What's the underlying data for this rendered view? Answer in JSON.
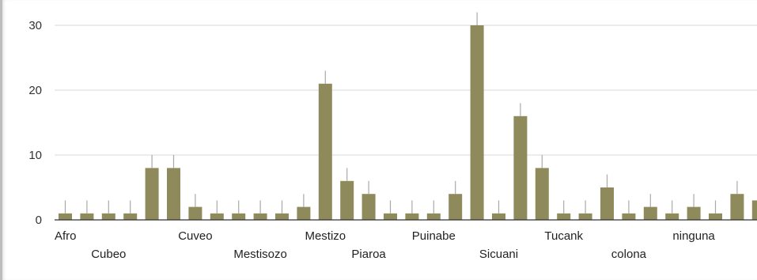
{
  "chart_data": {
    "type": "bar",
    "title": "",
    "xlabel": "",
    "ylabel": "",
    "ylim": [
      0,
      30
    ],
    "yticks": [
      0,
      10,
      20,
      30
    ],
    "grid": true,
    "bar_color": "#8f8a5b",
    "error_color": "#a9a9a9",
    "categories": [
      "Afro",
      "",
      "Cubeo",
      "",
      "",
      "",
      "Cuveo",
      "",
      "",
      "Mestisozo",
      "",
      "",
      "Mestizo",
      "",
      "Piaroa",
      "",
      "",
      "Puinabe",
      "",
      "",
      "Sicuani",
      "",
      "",
      "Tucank",
      "",
      "",
      "colona",
      "",
      "",
      "ninguna",
      "",
      "",
      ""
    ],
    "values": [
      1,
      1,
      1,
      1,
      8,
      8,
      2,
      1,
      1,
      1,
      1,
      2,
      21,
      6,
      4,
      1,
      1,
      1,
      4,
      30,
      1,
      16,
      8,
      1,
      1,
      5,
      1,
      2,
      1,
      2,
      1,
      4,
      3
    ],
    "error_upper": [
      3,
      3,
      3,
      3,
      10,
      10,
      4,
      3,
      3,
      3,
      3,
      4,
      23,
      8,
      6,
      3,
      3,
      3,
      6,
      32,
      3,
      18,
      10,
      3,
      3,
      7,
      3,
      4,
      3,
      4,
      3,
      6,
      5
    ]
  }
}
